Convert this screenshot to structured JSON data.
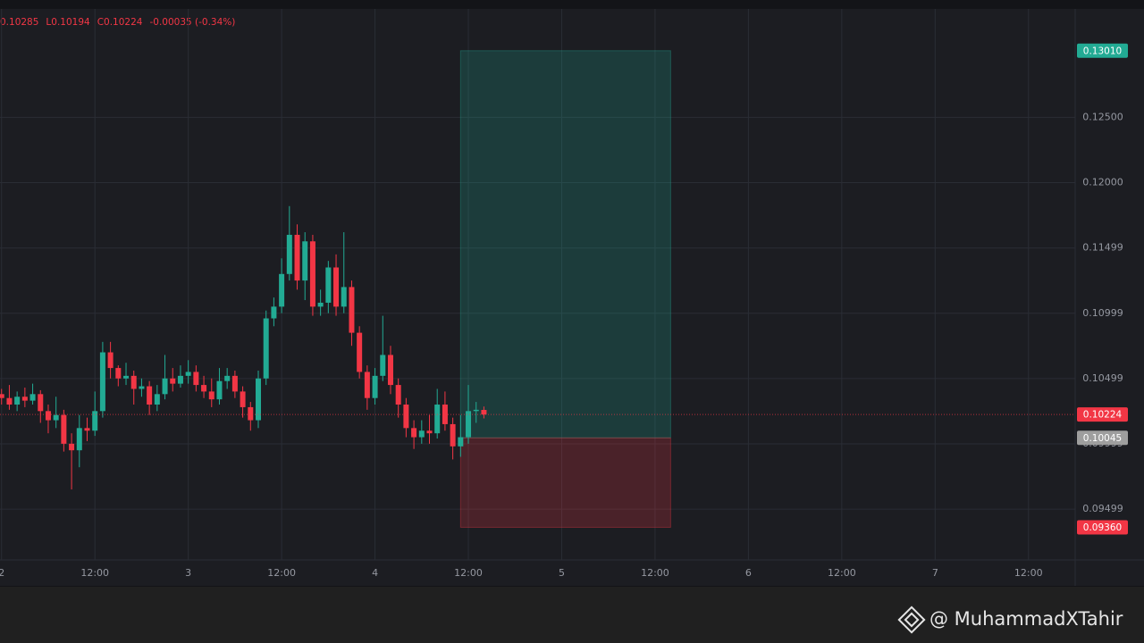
{
  "chart_data": {
    "type": "candlestick",
    "header": [
      "0.10285",
      "L0.10194",
      "C0.10224",
      "-0.00035 (-0.34%)"
    ],
    "x": [
      0,
      1,
      2,
      3,
      4,
      5,
      6,
      7,
      8,
      9,
      10,
      11,
      12,
      13,
      14,
      15,
      16,
      17,
      18,
      19,
      20,
      21,
      22,
      23,
      24,
      25,
      26,
      27,
      28,
      29,
      30,
      31,
      32,
      33,
      34,
      35,
      36,
      37,
      38,
      39,
      40,
      41,
      42,
      43,
      44,
      45,
      46,
      47,
      48,
      49,
      50,
      51,
      52,
      53,
      54,
      55,
      56,
      57,
      58,
      59,
      60,
      61,
      62
    ],
    "open": [
      0.1038,
      0.1035,
      0.103,
      0.1036,
      0.1033,
      0.1038,
      0.1025,
      0.1018,
      0.1022,
      0.1,
      0.0995,
      0.1012,
      0.101,
      0.1025,
      0.107,
      0.1058,
      0.105,
      0.1052,
      0.1042,
      0.1044,
      0.103,
      0.1038,
      0.105,
      0.1046,
      0.1052,
      0.1055,
      0.1045,
      0.104,
      0.1034,
      0.1048,
      0.1052,
      0.104,
      0.1028,
      0.1018,
      0.105,
      0.1096,
      0.1105,
      0.113,
      0.116,
      0.1125,
      0.1155,
      0.1105,
      0.1108,
      0.1135,
      0.1105,
      0.112,
      0.1085,
      0.1055,
      0.1035,
      0.1052,
      0.1068,
      0.1045,
      0.103,
      0.1012,
      0.1005,
      0.101,
      0.1008,
      0.103,
      0.1015,
      0.0998,
      0.1005,
      0.1025,
      0.10259
    ],
    "high": [
      0.1042,
      0.1045,
      0.104,
      0.1043,
      0.1046,
      0.1041,
      0.103,
      0.1036,
      0.1026,
      0.1008,
      0.1022,
      0.102,
      0.104,
      0.1078,
      0.1078,
      0.106,
      0.1062,
      0.1056,
      0.105,
      0.1048,
      0.1045,
      0.1068,
      0.1058,
      0.106,
      0.1064,
      0.106,
      0.1052,
      0.105,
      0.1058,
      0.1058,
      0.1056,
      0.1044,
      0.1032,
      0.1056,
      0.1102,
      0.1112,
      0.1142,
      0.1182,
      0.1168,
      0.1162,
      0.116,
      0.1118,
      0.114,
      0.1145,
      0.1162,
      0.1125,
      0.109,
      0.106,
      0.1058,
      0.1098,
      0.1075,
      0.105,
      0.1035,
      0.1018,
      0.1018,
      0.1022,
      0.1042,
      0.104,
      0.102,
      0.1022,
      0.1045,
      0.1032,
      0.10285
    ],
    "low": [
      0.103,
      0.1026,
      0.1025,
      0.1028,
      0.103,
      0.1016,
      0.1008,
      0.1012,
      0.0994,
      0.0965,
      0.0982,
      0.1002,
      0.1006,
      0.102,
      0.105,
      0.1044,
      0.1045,
      0.103,
      0.1036,
      0.1022,
      0.1025,
      0.1034,
      0.104,
      0.1043,
      0.1046,
      0.104,
      0.1035,
      0.1028,
      0.103,
      0.1042,
      0.1035,
      0.102,
      0.101,
      0.1012,
      0.1045,
      0.109,
      0.11,
      0.1125,
      0.1118,
      0.111,
      0.1098,
      0.1098,
      0.11,
      0.1098,
      0.11,
      0.1075,
      0.105,
      0.1026,
      0.103,
      0.1048,
      0.1038,
      0.102,
      0.1005,
      0.0996,
      0.1,
      0.1,
      0.1004,
      0.101,
      0.0988,
      0.099,
      0.1,
      0.1016,
      0.10194
    ],
    "close": [
      0.1035,
      0.103,
      0.1036,
      0.1033,
      0.1038,
      0.1025,
      0.1018,
      0.1022,
      0.1,
      0.0995,
      0.1012,
      0.101,
      0.1025,
      0.107,
      0.1058,
      0.105,
      0.1052,
      0.1042,
      0.1044,
      0.103,
      0.1038,
      0.105,
      0.1046,
      0.1052,
      0.1055,
      0.1045,
      0.104,
      0.1034,
      0.1048,
      0.1052,
      0.104,
      0.1028,
      0.1018,
      0.105,
      0.1096,
      0.1105,
      0.113,
      0.116,
      0.1125,
      0.1155,
      0.1105,
      0.1108,
      0.1135,
      0.1105,
      0.112,
      0.1085,
      0.1055,
      0.1035,
      0.1052,
      0.1068,
      0.1045,
      0.103,
      0.1012,
      0.1005,
      0.101,
      0.1008,
      0.103,
      0.1015,
      0.0998,
      0.1005,
      0.1025,
      0.1026,
      0.10224
    ],
    "up_color": "#22ab94",
    "down_color": "#f23645",
    "xlim": [
      -0.2,
      138
    ],
    "ylim": [
      0.0911,
      0.1333
    ],
    "xticks": [
      {
        "value": 0,
        "label": "2"
      },
      {
        "value": 12,
        "label": "12:00"
      },
      {
        "value": 24,
        "label": "3"
      },
      {
        "value": 36,
        "label": "12:00"
      },
      {
        "value": 48,
        "label": "4"
      },
      {
        "value": 60,
        "label": "12:00"
      },
      {
        "value": 72,
        "label": "5"
      },
      {
        "value": 84,
        "label": "12:00"
      },
      {
        "value": 96,
        "label": "6"
      },
      {
        "value": 108,
        "label": "12:00"
      },
      {
        "value": 120,
        "label": "7"
      },
      {
        "value": 132,
        "label": "12:00"
      }
    ],
    "yticks": [
      {
        "value": 0.125,
        "label": "0.12500"
      },
      {
        "value": 0.12,
        "label": "0.12000"
      },
      {
        "value": 0.11499,
        "label": "0.11499"
      },
      {
        "value": 0.10999,
        "label": "0.10999"
      },
      {
        "value": 0.10499,
        "label": "0.10499"
      },
      {
        "value": 0.09999,
        "label": "0.09999"
      },
      {
        "value": 0.09499,
        "label": "0.09499"
      }
    ],
    "grid": true,
    "last_price": {
      "value": 0.10224,
      "label": "0.10224"
    },
    "position": {
      "start": 59,
      "end": 86,
      "target": {
        "value": 0.1301,
        "label": "0.13010"
      },
      "entry": {
        "value": 0.10045,
        "label": "0.10045"
      },
      "stop": {
        "value": 0.0936,
        "label": "0.09360"
      }
    },
    "watermark": "@ MuhammadXTahir"
  }
}
